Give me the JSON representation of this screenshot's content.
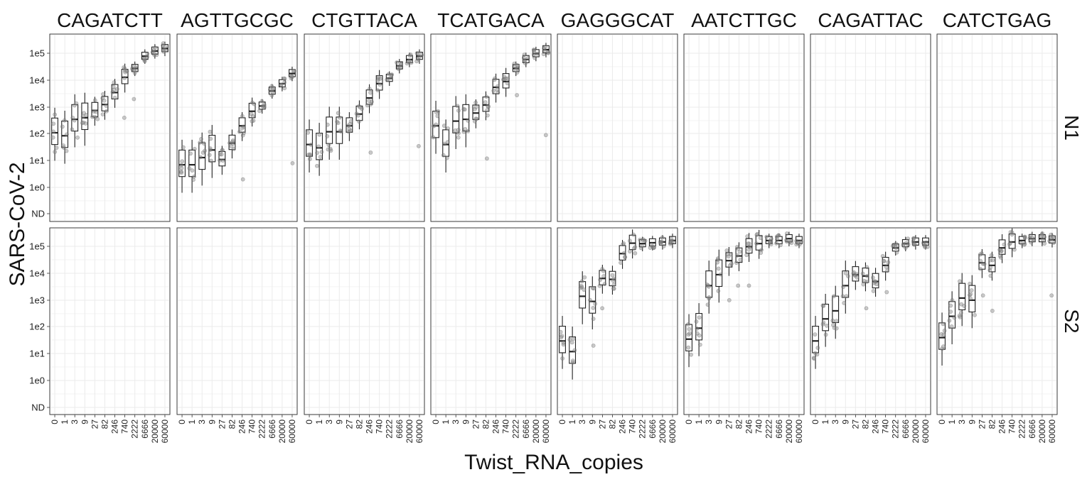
{
  "chart_data": {
    "type": "box",
    "xlabel": "Twist_RNA_copies",
    "ylabel": "SARS-CoV-2",
    "x_categories": [
      "0",
      "1",
      "3",
      "9",
      "27",
      "82",
      "246",
      "740",
      "2222",
      "6666",
      "20000",
      "60000"
    ],
    "y_scale": "log10",
    "y_ticks": [
      "ND",
      "1e0",
      "1e1",
      "1e2",
      "1e3",
      "1e4",
      "1e5"
    ],
    "columns": [
      "CAGATCTT",
      "AGTTGCGC",
      "CTGTTACA",
      "TCATGACA",
      "GAGGGCAT",
      "AATCTTGC",
      "CAGATTAC",
      "CATCTGAG"
    ],
    "rows": [
      "N1",
      "S2"
    ],
    "grid": true,
    "panels": [
      {
        "row": "N1",
        "column": "CAGATCTT",
        "medians": [
          110,
          85,
          350,
          400,
          750,
          1250,
          3500,
          13000,
          28000,
          80000,
          125000,
          155000
        ],
        "outliers": [
          [
            7,
            400
          ],
          [
            8,
            2000
          ]
        ]
      },
      {
        "row": "N1",
        "column": "AGTTGCGC",
        "medians": [
          7,
          7,
          13,
          25,
          11,
          45,
          200,
          700,
          1100,
          4000,
          7500,
          18000
        ],
        "outliers": [
          [
            6,
            2
          ],
          [
            11,
            8
          ]
        ]
      },
      {
        "row": "N1",
        "column": "CTGTTACA",
        "medians": [
          40,
          30,
          120,
          120,
          200,
          550,
          2200,
          7500,
          12000,
          35000,
          60000,
          80000
        ],
        "outliers": [
          [
            6,
            20
          ],
          [
            11,
            35
          ]
        ]
      },
      {
        "row": "N1",
        "column": "TCATGACA",
        "medians": [
          200,
          40,
          300,
          350,
          600,
          1200,
          5500,
          9000,
          28000,
          60000,
          100000,
          140000
        ],
        "outliers": [
          [
            5,
            12
          ],
          [
            8,
            2800
          ],
          [
            11,
            90
          ]
        ]
      },
      {
        "row": "N1",
        "column": "GAGGGCAT",
        "medians": [],
        "outliers": []
      },
      {
        "row": "N1",
        "column": "AATCTTGC",
        "medians": [],
        "outliers": []
      },
      {
        "row": "N1",
        "column": "CAGATTAC",
        "medians": [],
        "outliers": []
      },
      {
        "row": "N1",
        "column": "CATCTGAG",
        "medians": [],
        "outliers": []
      },
      {
        "row": "S2",
        "column": "CAGATCTT",
        "medians": [],
        "outliers": []
      },
      {
        "row": "S2",
        "column": "AGTTGCGC",
        "medians": [],
        "outliers": []
      },
      {
        "row": "S2",
        "column": "CTGTTACA",
        "medians": [],
        "outliers": []
      },
      {
        "row": "S2",
        "column": "TCATGACA",
        "medians": [],
        "outliers": []
      },
      {
        "row": "S2",
        "column": "GAGGGCAT",
        "medians": [
          30,
          12,
          1400,
          900,
          6500,
          6000,
          55000,
          135000,
          130000,
          140000,
          150000,
          170000
        ],
        "outliers": [
          [
            3,
            20
          ],
          [
            4,
            500
          ]
        ]
      },
      {
        "row": "S2",
        "column": "AATCTTGC",
        "medians": [
          35,
          90,
          3500,
          9000,
          30000,
          45000,
          100000,
          130000,
          170000,
          170000,
          200000,
          170000
        ],
        "outliers": [
          [
            5,
            3500
          ],
          [
            6,
            3500
          ],
          [
            4,
            1000
          ]
        ]
      },
      {
        "row": "S2",
        "column": "CAGATTAC",
        "medians": [
          30,
          200,
          400,
          3500,
          9000,
          8000,
          5000,
          20000,
          90000,
          130000,
          150000,
          150000
        ],
        "outliers": [
          [
            5,
            500
          ],
          [
            7,
            2000
          ]
        ]
      },
      {
        "row": "S2",
        "column": "CATCTGAG",
        "medians": [
          40,
          250,
          1200,
          1000,
          25000,
          20000,
          90000,
          150000,
          170000,
          200000,
          200000,
          180000
        ],
        "outliers": [
          [
            4,
            1500
          ],
          [
            5,
            400
          ],
          [
            11,
            1500
          ]
        ]
      }
    ]
  }
}
